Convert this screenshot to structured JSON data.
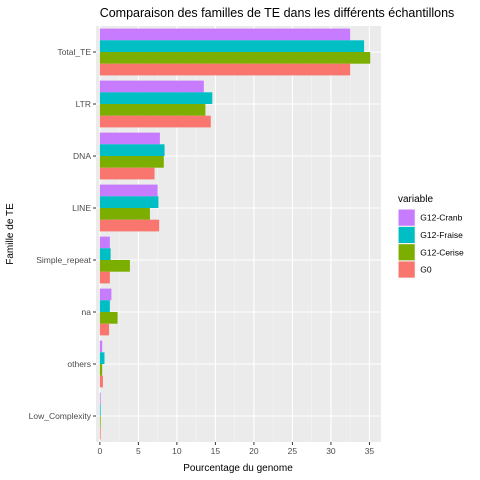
{
  "chart_data": {
    "type": "bar",
    "orientation": "horizontal",
    "title": "Comparaison des familles de TE dans les différents échantillons",
    "xlabel": "Pourcentage du genome",
    "ylabel": "Famille de TE",
    "xlim": [
      -0.5,
      36.5
    ],
    "xticks": [
      "0",
      "5",
      "10",
      "15",
      "20",
      "25",
      "30",
      "35"
    ],
    "grid": true,
    "legend_position": "right",
    "legend_title": "variable",
    "categories": [
      "Total_TE",
      "LTR",
      "DNA",
      "LINE",
      "Simple_repeat",
      "na",
      "others",
      "Low_Complexity"
    ],
    "series": [
      {
        "name": "G12-Cranb",
        "color": "#C77CFF",
        "values": [
          32.5,
          13.5,
          7.8,
          7.5,
          1.3,
          1.5,
          0.3,
          0.1
        ]
      },
      {
        "name": "G12-Fraise",
        "color": "#00BFC4",
        "values": [
          34.3,
          14.6,
          8.4,
          7.6,
          1.4,
          1.3,
          0.6,
          0.1
        ]
      },
      {
        "name": "G12-Cerise",
        "color": "#7CAE00",
        "values": [
          35.1,
          13.7,
          8.3,
          6.5,
          3.9,
          2.3,
          0.3,
          0.1
        ]
      },
      {
        "name": "G0",
        "color": "#F8766D",
        "values": [
          32.5,
          14.4,
          7.1,
          7.7,
          1.3,
          1.2,
          0.4,
          0.1
        ]
      }
    ]
  }
}
